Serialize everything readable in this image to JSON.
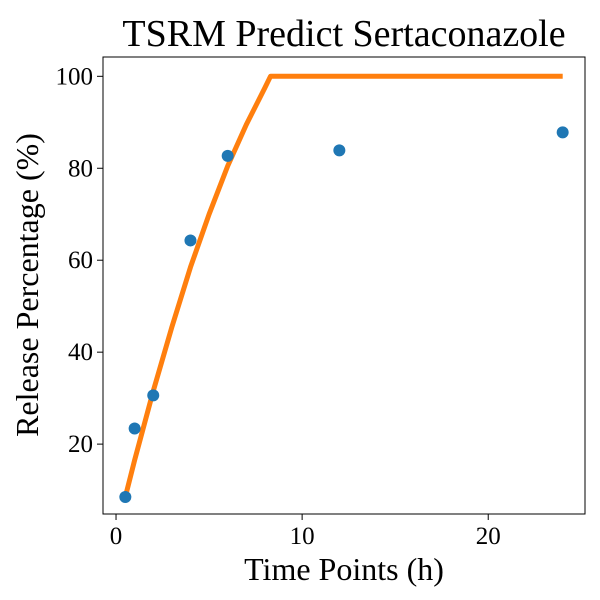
{
  "chart_data": {
    "type": "scatter",
    "title": "TSRM Predict Sertaconazole",
    "xlabel": "Time Points (h)",
    "ylabel": "Release Percentage (%)",
    "xlim": [
      -0.7,
      25.2
    ],
    "ylim": [
      4.8,
      104.2
    ],
    "xticks": [
      0,
      10,
      20
    ],
    "yticks": [
      20,
      40,
      60,
      80,
      100
    ],
    "grid": false,
    "series": [
      {
        "type": "scatter",
        "color": "#1f77b4",
        "x": [
          0.5,
          1,
          2,
          4,
          6,
          12,
          24
        ],
        "y": [
          8.5,
          23.4,
          30.6,
          64.3,
          82.7,
          83.9,
          87.8
        ]
      },
      {
        "type": "line",
        "color": "#ff7f0e",
        "x": [
          0.5,
          1,
          2,
          3,
          4,
          5,
          6,
          7,
          8,
          8.3,
          10,
          12,
          16,
          20,
          24
        ],
        "y": [
          8.5,
          16.5,
          31.5,
          45.5,
          58.5,
          70.0,
          80.5,
          89.5,
          97.5,
          100,
          100,
          100,
          100,
          100,
          100
        ]
      }
    ]
  }
}
